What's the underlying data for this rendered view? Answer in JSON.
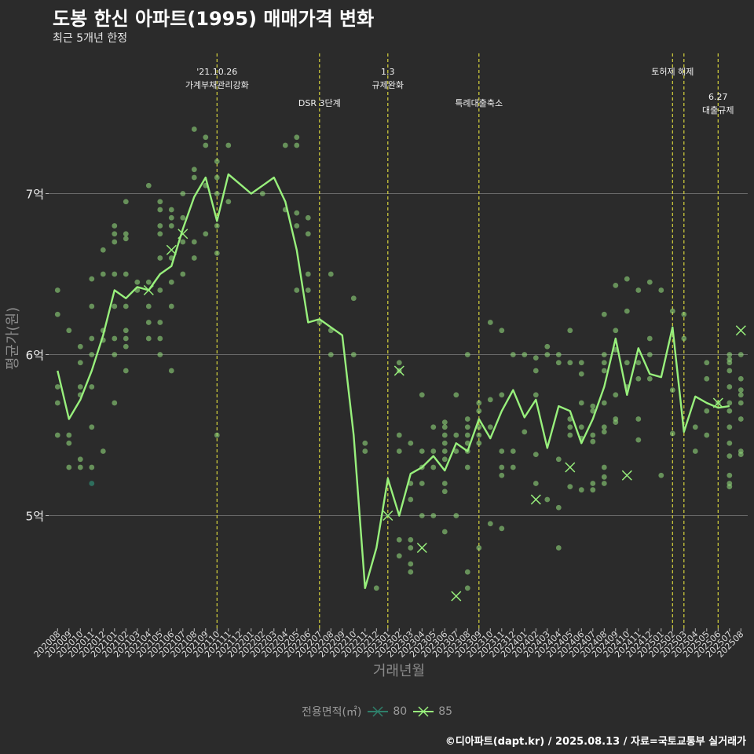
{
  "title": "도봉 한신 아파트(1995) 매매가격 변화",
  "subtitle": "최근 5개년 한정",
  "caption": "©디아파트(dapt.kr) / 2025.08.13 / 자료=국토교통부 실거래가",
  "colors": {
    "background": "#2b2b2b",
    "grid": "#6b6b6b",
    "line": "#98f07c",
    "point_85": "#8fd67a",
    "point_80": "#2f7f6a",
    "event_line": "#d6d23c",
    "text": "#eeeeee",
    "axis_title": "#8a8a8a"
  },
  "chart_data": {
    "type": "line",
    "xlabel": "거래년월",
    "ylabel": "평균가(원)",
    "x": [
      "202008",
      "202009",
      "202010",
      "202011",
      "202012",
      "202101",
      "202102",
      "202103",
      "202104",
      "202105",
      "202106",
      "202107",
      "202108",
      "202109",
      "202110",
      "202111",
      "202112",
      "202201",
      "202202",
      "202203",
      "202204",
      "202205",
      "202206",
      "202207",
      "202208",
      "202209",
      "202210",
      "202211",
      "202212",
      "202301",
      "202302",
      "202303",
      "202304",
      "202305",
      "202306",
      "202307",
      "202308",
      "202309",
      "202310",
      "202311",
      "202312",
      "202401",
      "202402",
      "202403",
      "202404",
      "202405",
      "202406",
      "202407",
      "202408",
      "202409",
      "202410",
      "202411",
      "202412",
      "202501",
      "202502",
      "202503",
      "202504",
      "202505",
      "202506",
      "202507",
      "202508"
    ],
    "ylim": [
      4.3,
      7.9
    ],
    "yticks": [
      5,
      6,
      7
    ],
    "ytick_labels": [
      "5억",
      "6억",
      "7억"
    ],
    "grid": true,
    "legend": {
      "title": "전용면적(㎡)",
      "position": "bottom",
      "entries": [
        {
          "label": "80",
          "color": "#2f7f6a"
        },
        {
          "label": "85",
          "color": "#98f07c"
        }
      ]
    },
    "series": [
      {
        "name": "85",
        "values": [
          5.9,
          5.6,
          5.72,
          5.9,
          6.12,
          6.4,
          6.35,
          6.42,
          6.4,
          6.5,
          6.55,
          6.78,
          6.98,
          7.1,
          6.83,
          7.12,
          7.06,
          7.0,
          7.05,
          7.1,
          6.95,
          6.65,
          6.2,
          6.22,
          6.17,
          6.12,
          5.5,
          4.55,
          4.8,
          5.23,
          5.0,
          5.26,
          5.3,
          5.37,
          5.28,
          5.45,
          5.4,
          5.6,
          5.48,
          5.65,
          5.78,
          5.61,
          5.72,
          5.42,
          5.68,
          5.65,
          5.45,
          5.6,
          5.8,
          6.1,
          5.75,
          6.04,
          5.88,
          5.86,
          6.17,
          5.52,
          5.74,
          5.7,
          5.67,
          5.68,
          null
        ]
      }
    ],
    "points_85": [
      [
        0,
        6.4
      ],
      [
        0,
        6.25
      ],
      [
        0,
        5.8
      ],
      [
        0,
        5.7
      ],
      [
        0,
        5.5
      ],
      [
        1,
        5.5
      ],
      [
        1,
        5.45
      ],
      [
        1,
        5.3
      ],
      [
        1,
        6.15
      ],
      [
        2,
        5.8
      ],
      [
        2,
        5.75
      ],
      [
        2,
        5.95
      ],
      [
        2,
        5.35
      ],
      [
        2,
        5.3
      ],
      [
        2,
        6.05
      ],
      [
        3,
        6.1
      ],
      [
        3,
        6.0
      ],
      [
        3,
        5.8
      ],
      [
        3,
        5.55
      ],
      [
        3,
        6.3
      ],
      [
        3,
        6.47
      ],
      [
        3,
        5.3
      ],
      [
        4,
        6.65
      ],
      [
        4,
        6.5
      ],
      [
        4,
        6.15
      ],
      [
        4,
        6.09
      ],
      [
        4,
        5.4
      ],
      [
        5,
        6.8
      ],
      [
        5,
        6.75
      ],
      [
        5,
        6.7
      ],
      [
        5,
        6.5
      ],
      [
        5,
        6.3
      ],
      [
        5,
        6.1
      ],
      [
        5,
        6.0
      ],
      [
        5,
        5.7
      ],
      [
        6,
        6.95
      ],
      [
        6,
        6.75
      ],
      [
        6,
        6.72
      ],
      [
        6,
        6.5
      ],
      [
        6,
        6.3
      ],
      [
        6,
        6.15
      ],
      [
        6,
        6.1
      ],
      [
        6,
        6.05
      ],
      [
        6,
        5.9
      ],
      [
        7,
        6.45
      ],
      [
        7,
        6.4
      ],
      [
        8,
        7.05
      ],
      [
        8,
        6.45
      ],
      [
        8,
        6.3
      ],
      [
        8,
        6.2
      ],
      [
        8,
        6.1
      ],
      [
        9,
        6.95
      ],
      [
        9,
        6.9
      ],
      [
        9,
        6.8
      ],
      [
        9,
        6.75
      ],
      [
        9,
        6.6
      ],
      [
        9,
        6.4
      ],
      [
        9,
        6.2
      ],
      [
        9,
        6.1
      ],
      [
        9,
        6.0
      ],
      [
        10,
        6.9
      ],
      [
        10,
        6.85
      ],
      [
        10,
        6.8
      ],
      [
        10,
        6.6
      ],
      [
        10,
        6.45
      ],
      [
        10,
        6.3
      ],
      [
        10,
        5.9
      ],
      [
        11,
        7.0
      ],
      [
        11,
        6.85
      ],
      [
        11,
        6.7
      ],
      [
        11,
        6.5
      ],
      [
        12,
        7.4
      ],
      [
        12,
        7.15
      ],
      [
        12,
        7.1
      ],
      [
        12,
        6.7
      ],
      [
        12,
        6.6
      ],
      [
        13,
        7.35
      ],
      [
        13,
        7.3
      ],
      [
        13,
        7.05
      ],
      [
        13,
        6.75
      ],
      [
        14,
        7.2
      ],
      [
        14,
        7.1
      ],
      [
        14,
        7.0
      ],
      [
        14,
        6.8
      ],
      [
        14,
        6.63
      ],
      [
        14,
        5.5
      ],
      [
        15,
        7.3
      ],
      [
        15,
        6.95
      ],
      [
        18,
        7.0
      ],
      [
        20,
        7.3
      ],
      [
        20,
        6.9
      ],
      [
        21,
        7.35
      ],
      [
        21,
        7.3
      ],
      [
        21,
        6.88
      ],
      [
        21,
        6.8
      ],
      [
        21,
        6.4
      ],
      [
        22,
        6.85
      ],
      [
        22,
        6.75
      ],
      [
        22,
        6.5
      ],
      [
        22,
        6.4
      ],
      [
        23,
        6.2
      ],
      [
        24,
        6.5
      ],
      [
        24,
        6.15
      ],
      [
        24,
        6.0
      ],
      [
        26,
        6.35
      ],
      [
        26,
        6.0
      ],
      [
        27,
        5.45
      ],
      [
        27,
        5.4
      ],
      [
        28,
        4.55
      ],
      [
        30,
        5.95
      ],
      [
        30,
        5.9
      ],
      [
        30,
        5.5
      ],
      [
        30,
        5.4
      ],
      [
        30,
        4.85
      ],
      [
        30,
        4.75
      ],
      [
        31,
        5.45
      ],
      [
        31,
        5.2
      ],
      [
        31,
        5.1
      ],
      [
        31,
        4.85
      ],
      [
        31,
        4.8
      ],
      [
        31,
        4.7
      ],
      [
        31,
        4.65
      ],
      [
        32,
        5.75
      ],
      [
        32,
        5.4
      ],
      [
        32,
        5.3
      ],
      [
        32,
        5.2
      ],
      [
        32,
        5.0
      ],
      [
        33,
        5.55
      ],
      [
        33,
        5.4
      ],
      [
        33,
        5.3
      ],
      [
        33,
        5.0
      ],
      [
        34,
        5.58
      ],
      [
        34,
        5.55
      ],
      [
        34,
        5.5
      ],
      [
        34,
        5.45
      ],
      [
        34,
        5.4
      ],
      [
        34,
        5.35
      ],
      [
        34,
        5.2
      ],
      [
        34,
        5.15
      ],
      [
        34,
        4.9
      ],
      [
        35,
        5.75
      ],
      [
        35,
        5.5
      ],
      [
        35,
        5.4
      ],
      [
        35,
        5.0
      ],
      [
        36,
        6.0
      ],
      [
        36,
        5.6
      ],
      [
        36,
        5.55
      ],
      [
        36,
        5.5
      ],
      [
        36,
        5.45
      ],
      [
        36,
        5.4
      ],
      [
        36,
        5.3
      ],
      [
        36,
        4.65
      ],
      [
        36,
        4.55
      ],
      [
        37,
        5.7
      ],
      [
        37,
        5.65
      ],
      [
        37,
        5.55
      ],
      [
        37,
        5.5
      ],
      [
        37,
        5.45
      ],
      [
        37,
        4.8
      ],
      [
        38,
        6.2
      ],
      [
        38,
        5.72
      ],
      [
        38,
        5.55
      ],
      [
        38,
        4.95
      ],
      [
        39,
        6.15
      ],
      [
        39,
        5.75
      ],
      [
        39,
        5.4
      ],
      [
        39,
        5.3
      ],
      [
        39,
        5.25
      ],
      [
        39,
        4.92
      ],
      [
        40,
        6.0
      ],
      [
        40,
        5.4
      ],
      [
        40,
        5.3
      ],
      [
        41,
        6.0
      ],
      [
        41,
        5.52
      ],
      [
        42,
        5.98
      ],
      [
        42,
        5.9
      ],
      [
        42,
        5.75
      ],
      [
        42,
        5.38
      ],
      [
        42,
        5.2
      ],
      [
        43,
        6.05
      ],
      [
        43,
        6.0
      ],
      [
        43,
        5.1
      ],
      [
        44,
        6.0
      ],
      [
        44,
        5.95
      ],
      [
        44,
        5.35
      ],
      [
        44,
        5.05
      ],
      [
        44,
        4.8
      ],
      [
        45,
        6.15
      ],
      [
        45,
        5.95
      ],
      [
        45,
        5.6
      ],
      [
        45,
        5.55
      ],
      [
        45,
        5.5
      ],
      [
        45,
        5.18
      ],
      [
        46,
        5.95
      ],
      [
        46,
        5.88
      ],
      [
        46,
        5.7
      ],
      [
        46,
        5.55
      ],
      [
        46,
        5.48
      ],
      [
        46,
        5.16
      ],
      [
        47,
        5.68
      ],
      [
        47,
        5.65
      ],
      [
        47,
        5.5
      ],
      [
        47,
        5.46
      ],
      [
        47,
        5.2
      ],
      [
        47,
        5.16
      ],
      [
        48,
        6.25
      ],
      [
        48,
        6.0
      ],
      [
        48,
        5.95
      ],
      [
        48,
        5.9
      ],
      [
        48,
        5.7
      ],
      [
        48,
        5.55
      ],
      [
        48,
        5.52
      ],
      [
        48,
        5.3
      ],
      [
        48,
        5.24
      ],
      [
        48,
        5.2
      ],
      [
        49,
        6.43
      ],
      [
        49,
        6.15
      ],
      [
        49,
        6.03
      ],
      [
        49,
        5.75
      ],
      [
        49,
        5.6
      ],
      [
        49,
        5.58
      ],
      [
        50,
        6.47
      ],
      [
        50,
        6.27
      ],
      [
        50,
        5.95
      ],
      [
        50,
        5.8
      ],
      [
        51,
        6.4
      ],
      [
        51,
        5.95
      ],
      [
        51,
        5.85
      ],
      [
        51,
        5.6
      ],
      [
        51,
        5.47
      ],
      [
        52,
        6.45
      ],
      [
        52,
        6.1
      ],
      [
        52,
        6.0
      ],
      [
        52,
        5.85
      ],
      [
        53,
        6.4
      ],
      [
        53,
        5.25
      ],
      [
        54,
        6.27
      ],
      [
        54,
        5.78
      ],
      [
        54,
        5.51
      ],
      [
        55,
        6.25
      ],
      [
        55,
        6.1
      ],
      [
        56,
        5.55
      ],
      [
        56,
        5.4
      ],
      [
        57,
        5.95
      ],
      [
        57,
        5.85
      ],
      [
        57,
        5.65
      ],
      [
        57,
        5.5
      ],
      [
        58,
        5.7
      ],
      [
        59,
        6.0
      ],
      [
        59,
        5.97
      ],
      [
        59,
        5.95
      ],
      [
        59,
        5.9
      ],
      [
        59,
        5.8
      ],
      [
        59,
        5.7
      ],
      [
        59,
        5.65
      ],
      [
        59,
        5.55
      ],
      [
        59,
        5.45
      ],
      [
        59,
        5.37
      ],
      [
        59,
        5.25
      ],
      [
        59,
        5.2
      ],
      [
        59,
        5.18
      ],
      [
        60,
        6.0
      ],
      [
        60,
        5.85
      ],
      [
        60,
        5.78
      ],
      [
        60,
        5.75
      ],
      [
        60,
        5.7
      ],
      [
        60,
        5.6
      ],
      [
        60,
        5.4
      ],
      [
        60,
        5.38
      ]
    ],
    "points_80": [
      [
        3,
        5.2
      ]
    ],
    "cross_85": [
      [
        8,
        6.4
      ],
      [
        10,
        6.65
      ],
      [
        11,
        6.75
      ],
      [
        29,
        5.0
      ],
      [
        30,
        5.9
      ],
      [
        32,
        4.8
      ],
      [
        35,
        4.5
      ],
      [
        42,
        5.1
      ],
      [
        45,
        5.3
      ],
      [
        50,
        5.25
      ],
      [
        58,
        5.7
      ],
      [
        60,
        6.15
      ]
    ],
    "events": [
      {
        "x": "202110",
        "lines": [
          "'21.10.26",
          "가계부채관리강화"
        ],
        "level": 0
      },
      {
        "x": "202207",
        "lines": [
          "DSR 3단계"
        ],
        "level": 1
      },
      {
        "x": "202301",
        "lines": [
          "1.3",
          "규제완화"
        ],
        "level": 0
      },
      {
        "x": "202309",
        "lines": [
          "특례대출축소"
        ],
        "level": 1
      },
      {
        "x": "202502",
        "lines": [
          "토허제 해제"
        ],
        "level": 0
      },
      {
        "x": "202503",
        "lines": [],
        "level": 0
      },
      {
        "x": "202506",
        "lines": [
          "6.27",
          "대출규제"
        ],
        "level": 2
      }
    ]
  }
}
